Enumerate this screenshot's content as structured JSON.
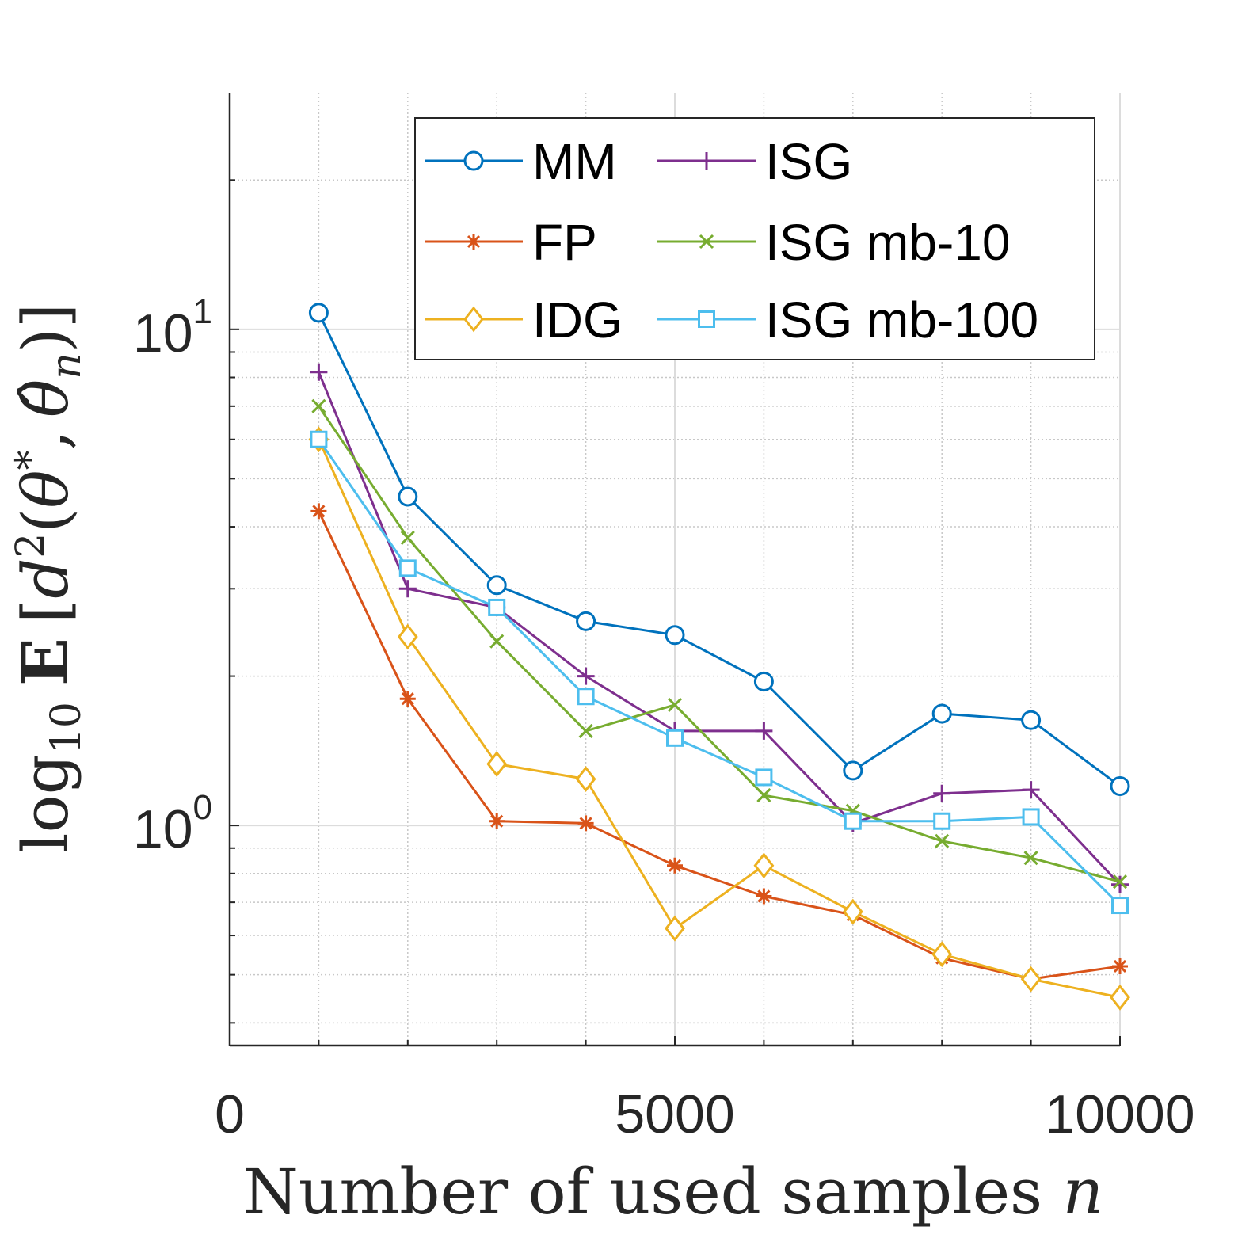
{
  "chart_data": {
    "type": "line",
    "title": "",
    "xlabel": "Number of used samples",
    "xlabel_var": "n",
    "ylabel": "log10 E [d²(θ*, θ̂n)]",
    "ylabel_parts": {
      "log": "log",
      "sub": "10",
      "E": "E",
      "bracket": "[",
      "d": "d",
      "sq": "2",
      "open": "(",
      "theta": "θ",
      "star": "*",
      "comma": ",",
      "thetahat": "θ̂",
      "n": "n",
      "close": ")]"
    },
    "xlim": [
      0,
      10000
    ],
    "ylim": [
      0.36,
      30
    ],
    "yscale": "log",
    "grid": true,
    "x_ticks": [
      {
        "value": 0,
        "label": "0"
      },
      {
        "value": 5000,
        "label": "5000"
      },
      {
        "value": 10000,
        "label": "10000"
      }
    ],
    "y_ticks": [
      {
        "value": 1,
        "base": "10",
        "exp": "0"
      },
      {
        "value": 10,
        "base": "10",
        "exp": "1"
      }
    ],
    "legend_position": "top-right",
    "x": [
      1000,
      2000,
      3000,
      4000,
      5000,
      6000,
      7000,
      8000,
      9000,
      10000
    ],
    "series": [
      {
        "name": "MM",
        "color": "#0072BD",
        "marker": "circle",
        "values": [
          10.8,
          4.6,
          3.05,
          2.58,
          2.42,
          1.95,
          1.29,
          1.68,
          1.63,
          1.2
        ]
      },
      {
        "name": "FP",
        "color": "#D95319",
        "marker": "asterisk",
        "values": [
          4.3,
          1.8,
          1.02,
          1.01,
          0.83,
          0.72,
          0.66,
          0.54,
          0.49,
          0.52
        ]
      },
      {
        "name": "IDG",
        "color": "#EDB120",
        "marker": "diamond",
        "values": [
          6.0,
          2.4,
          1.33,
          1.24,
          0.62,
          0.83,
          0.67,
          0.55,
          0.49,
          0.45
        ]
      },
      {
        "name": "ISG",
        "color": "#7E2F8E",
        "marker": "plus",
        "values": [
          8.2,
          3.0,
          2.75,
          2.0,
          1.55,
          1.55,
          1.01,
          1.16,
          1.18,
          0.76
        ]
      },
      {
        "name": "ISG mb-10",
        "color": "#77AC30",
        "marker": "cross",
        "values": [
          7.0,
          3.8,
          2.35,
          1.55,
          1.75,
          1.15,
          1.07,
          0.93,
          0.86,
          0.77
        ]
      },
      {
        "name": "ISG mb-100",
        "color": "#4DBEEE",
        "marker": "square",
        "values": [
          6.0,
          3.3,
          2.75,
          1.82,
          1.5,
          1.25,
          1.02,
          1.02,
          1.04,
          0.69
        ]
      }
    ]
  }
}
